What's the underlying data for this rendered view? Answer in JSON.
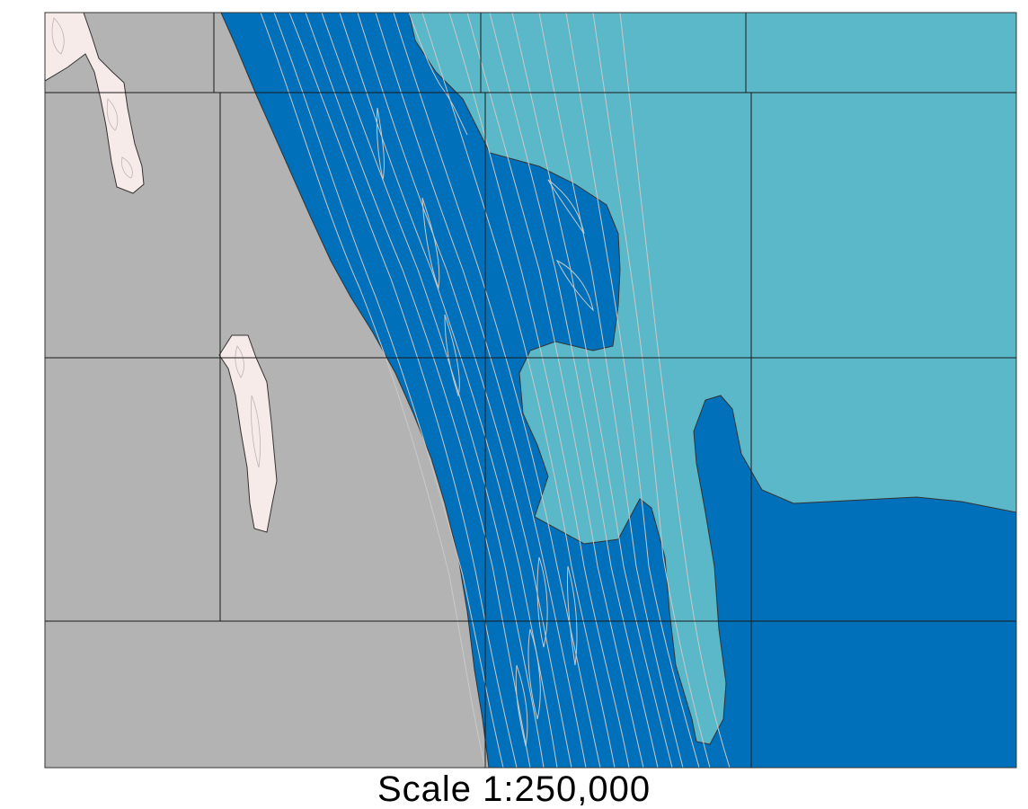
{
  "map": {
    "scale_text": "Scale 1:250,000",
    "colors": {
      "land": "#b3b3b3",
      "deep_water": "#0070bb",
      "shallow_water": "#5bb8c8",
      "island": "#f7ebea",
      "grid_line": "#1a1a1a",
      "contour": "#c9c9c9",
      "border": "#333333"
    }
  }
}
